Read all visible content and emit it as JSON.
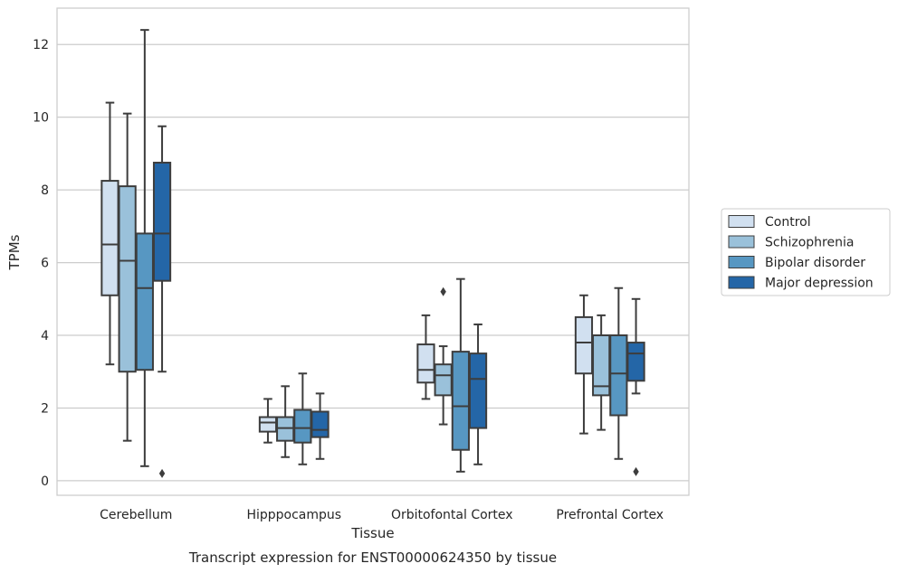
{
  "chart_data": {
    "type": "box",
    "title": "Transcript expression for ENST00000624350 by tissue",
    "xlabel": "Tissue",
    "ylabel": "TPMs",
    "ylim": [
      -0.4,
      13.0
    ],
    "yticks": [
      0,
      2,
      4,
      6,
      8,
      10,
      12
    ],
    "grid": true,
    "legend_position": "right",
    "categories": [
      "Cerebellum",
      "Hipppocampus",
      "Orbitofontal Cortex",
      "Prefrontal Cortex"
    ],
    "series": [
      {
        "name": "Control",
        "color": "#d1e0f0",
        "boxes": [
          {
            "whislo": 3.2,
            "q1": 5.1,
            "med": 6.5,
            "q3": 8.25,
            "whishi": 10.4,
            "fliers": []
          },
          {
            "whislo": 1.05,
            "q1": 1.35,
            "med": 1.6,
            "q3": 1.75,
            "whishi": 2.25,
            "fliers": []
          },
          {
            "whislo": 2.25,
            "q1": 2.7,
            "med": 3.05,
            "q3": 3.75,
            "whishi": 4.55,
            "fliers": []
          },
          {
            "whislo": 1.3,
            "q1": 2.95,
            "med": 3.8,
            "q3": 4.5,
            "whishi": 5.1,
            "fliers": []
          }
        ]
      },
      {
        "name": "Schizophrenia",
        "color": "#9ac1da",
        "boxes": [
          {
            "whislo": 1.1,
            "q1": 3.0,
            "med": 6.05,
            "q3": 8.1,
            "whishi": 10.1,
            "fliers": []
          },
          {
            "whislo": 0.65,
            "q1": 1.1,
            "med": 1.45,
            "q3": 1.75,
            "whishi": 2.6,
            "fliers": []
          },
          {
            "whislo": 1.55,
            "q1": 2.35,
            "med": 2.9,
            "q3": 3.2,
            "whishi": 3.7,
            "fliers": [
              5.2
            ]
          },
          {
            "whislo": 1.4,
            "q1": 2.35,
            "med": 2.6,
            "q3": 4.0,
            "whishi": 4.55,
            "fliers": []
          }
        ]
      },
      {
        "name": "Bipolar disorder",
        "color": "#5797c2",
        "boxes": [
          {
            "whislo": 0.4,
            "q1": 3.05,
            "med": 5.3,
            "q3": 6.8,
            "whishi": 12.4,
            "fliers": []
          },
          {
            "whislo": 0.45,
            "q1": 1.05,
            "med": 1.45,
            "q3": 1.95,
            "whishi": 2.95,
            "fliers": []
          },
          {
            "whislo": 0.25,
            "q1": 0.85,
            "med": 2.05,
            "q3": 3.55,
            "whishi": 5.55,
            "fliers": []
          },
          {
            "whislo": 0.6,
            "q1": 1.8,
            "med": 2.95,
            "q3": 4.0,
            "whishi": 5.3,
            "fliers": []
          }
        ]
      },
      {
        "name": "Major depression",
        "color": "#2466a7",
        "boxes": [
          {
            "whislo": 3.0,
            "q1": 5.5,
            "med": 6.8,
            "q3": 8.75,
            "whishi": 9.75,
            "fliers": [
              0.2
            ]
          },
          {
            "whislo": 0.6,
            "q1": 1.2,
            "med": 1.4,
            "q3": 1.9,
            "whishi": 2.4,
            "fliers": []
          },
          {
            "whislo": 0.45,
            "q1": 1.45,
            "med": 2.8,
            "q3": 3.5,
            "whishi": 4.3,
            "fliers": []
          },
          {
            "whislo": 2.4,
            "q1": 2.75,
            "med": 3.5,
            "q3": 3.8,
            "whishi": 5.0,
            "fliers": [
              0.25
            ]
          }
        ]
      }
    ]
  }
}
